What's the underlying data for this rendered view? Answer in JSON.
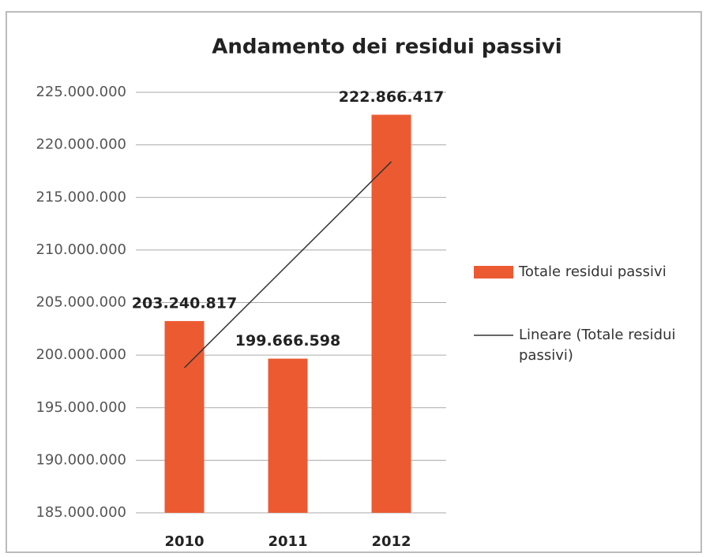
{
  "chart_data": {
    "type": "bar",
    "title": "Andamento dei residui passivi",
    "categories": [
      "2010",
      "2011",
      "2012"
    ],
    "series": [
      {
        "name": "Totale residui passivi",
        "type": "bar",
        "color": "#ec5a32",
        "values": [
          203240817,
          199666598,
          222866417
        ],
        "value_labels": [
          "203.240.817",
          "199.666.598",
          "222.866.417"
        ]
      },
      {
        "name": "Lineare (Totale residui passivi)",
        "type": "line",
        "color": "#333333",
        "values": [
          198800000,
          208600000,
          218400000
        ]
      }
    ],
    "ylim": [
      185000000,
      225000000
    ],
    "yticks": [
      {
        "value": 185000000,
        "label": "185.000.000"
      },
      {
        "value": 190000000,
        "label": "190.000.000"
      },
      {
        "value": 195000000,
        "label": "195.000.000"
      },
      {
        "value": 200000000,
        "label": "200.000.000"
      },
      {
        "value": 205000000,
        "label": "205.000.000"
      },
      {
        "value": 210000000,
        "label": "210.000.000"
      },
      {
        "value": 215000000,
        "label": "215.000.000"
      },
      {
        "value": 220000000,
        "label": "220.000.000"
      },
      {
        "value": 225000000,
        "label": "225.000.000"
      }
    ],
    "grid": true,
    "legend": "right"
  }
}
